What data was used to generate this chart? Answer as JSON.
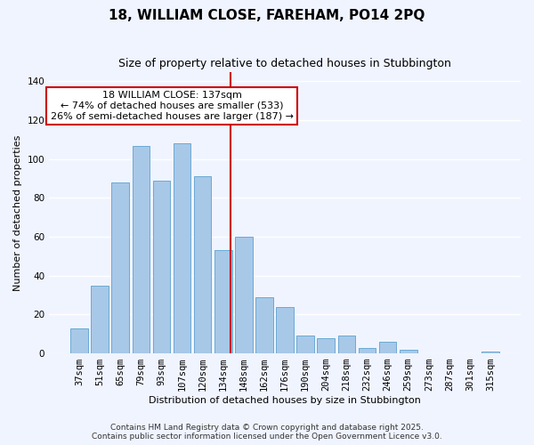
{
  "title": "18, WILLIAM CLOSE, FAREHAM, PO14 2PQ",
  "subtitle": "Size of property relative to detached houses in Stubbington",
  "xlabel": "Distribution of detached houses by size in Stubbington",
  "ylabel": "Number of detached properties",
  "bar_labels": [
    "37sqm",
    "51sqm",
    "65sqm",
    "79sqm",
    "93sqm",
    "107sqm",
    "120sqm",
    "134sqm",
    "148sqm",
    "162sqm",
    "176sqm",
    "190sqm",
    "204sqm",
    "218sqm",
    "232sqm",
    "246sqm",
    "259sqm",
    "273sqm",
    "287sqm",
    "301sqm",
    "315sqm"
  ],
  "bar_values": [
    13,
    35,
    88,
    107,
    89,
    108,
    91,
    53,
    60,
    29,
    24,
    9,
    8,
    9,
    3,
    6,
    2,
    0,
    0,
    0,
    1
  ],
  "bar_color": "#a8c8e8",
  "bar_edge_color": "#6aaad4",
  "vline_x_index": 7,
  "vline_color": "#cc0000",
  "annotation_title": "18 WILLIAM CLOSE: 137sqm",
  "annotation_line1": "← 74% of detached houses are smaller (533)",
  "annotation_line2": "26% of semi-detached houses are larger (187) →",
  "annotation_box_color": "#ffffff",
  "annotation_box_edge_color": "#cc0000",
  "ylim": [
    0,
    145
  ],
  "yticks": [
    0,
    20,
    40,
    60,
    80,
    100,
    120,
    140
  ],
  "footnote1": "Contains HM Land Registry data © Crown copyright and database right 2025.",
  "footnote2": "Contains public sector information licensed under the Open Government Licence v3.0.",
  "bg_color": "#f0f4ff",
  "grid_color": "#ffffff",
  "title_fontsize": 11,
  "subtitle_fontsize": 9,
  "axis_label_fontsize": 8,
  "tick_fontsize": 7.5,
  "annotation_fontsize": 8,
  "footnote_fontsize": 6.5
}
